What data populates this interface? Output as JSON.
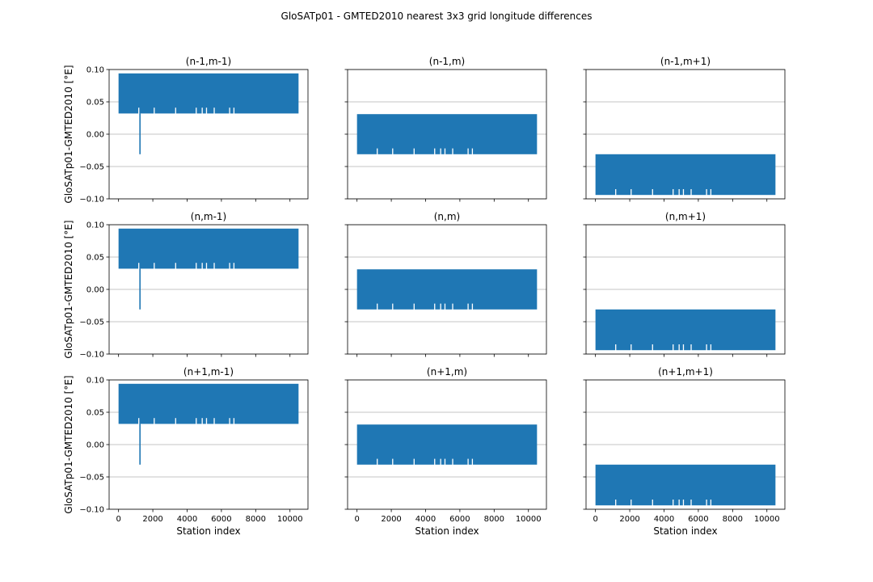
{
  "figure": {
    "suptitle": "GloSATp01 - GMTED2010 nearest 3x3 grid longitude differences"
  },
  "chart_data": {
    "type": "line",
    "layout": "3x3 grid of subplots, shared axes",
    "ylabel": "GloSATp01-GMTED2010 [°E]",
    "xlabel": "Station index",
    "xlim": [
      -550,
      11050
    ],
    "ylim": [
      -0.1,
      0.1
    ],
    "xticks": [
      0,
      2000,
      4000,
      6000,
      8000,
      10000
    ],
    "yticks": [
      -0.1,
      -0.05,
      0.0,
      0.05,
      0.1
    ],
    "xtick_labels": [
      "0",
      "2000",
      "4000",
      "6000",
      "8000",
      "10000"
    ],
    "ytick_labels": [
      "−0.10",
      "−0.05",
      "0.00",
      "0.05",
      "0.10"
    ],
    "grid": "horizontal gridlines",
    "color": "#1f77b4",
    "n_stations": 10500,
    "panels": [
      {
        "title": "(n-1,m-1)",
        "band": [
          0.032,
          0.094
        ],
        "gaps_to": 0.041,
        "spike": {
          "x": 1250,
          "y": -0.031
        }
      },
      {
        "title": "(n-1,m)",
        "band": [
          -0.031,
          0.031
        ],
        "gaps_to": -0.022,
        "spike": null
      },
      {
        "title": "(n-1,m+1)",
        "band": [
          -0.094,
          -0.031
        ],
        "gaps_to": -0.085,
        "spike": null
      },
      {
        "title": "(n,m-1)",
        "band": [
          0.032,
          0.094
        ],
        "gaps_to": 0.041,
        "spike": {
          "x": 1250,
          "y": -0.031
        }
      },
      {
        "title": "(n,m)",
        "band": [
          -0.031,
          0.031
        ],
        "gaps_to": -0.022,
        "spike": null
      },
      {
        "title": "(n,m+1)",
        "band": [
          -0.094,
          -0.031
        ],
        "gaps_to": -0.085,
        "spike": null
      },
      {
        "title": "(n+1,m-1)",
        "band": [
          0.032,
          0.094
        ],
        "gaps_to": 0.041,
        "spike": {
          "x": 1250,
          "y": -0.031
        }
      },
      {
        "title": "(n+1,m)",
        "band": [
          -0.031,
          0.031
        ],
        "gaps_to": -0.022,
        "spike": null
      },
      {
        "title": "(n+1,m+1)",
        "band": [
          -0.094,
          -0.031
        ],
        "gaps_to": -0.085,
        "spike": null
      }
    ],
    "gap_positions": [
      1150,
      2050,
      3300,
      4500,
      4850,
      5100,
      5550,
      6450,
      6700
    ]
  }
}
